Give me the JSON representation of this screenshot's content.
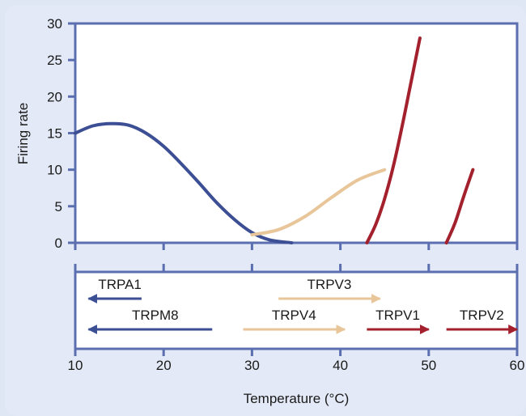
{
  "chart_data": {
    "type": "line",
    "xlabel": "Temperature (°C)",
    "ylabel": "Firing rate",
    "xlim": [
      10,
      60
    ],
    "ylim": [
      0,
      30
    ],
    "x_ticks": [
      10,
      20,
      30,
      40,
      50,
      60
    ],
    "y_ticks": [
      0,
      5,
      10,
      15,
      20,
      25,
      30
    ],
    "grid": false,
    "series": [
      {
        "name": "TRPM8",
        "color": "#3c4f94",
        "x": [
          10,
          12,
          14,
          16,
          18,
          20,
          22,
          24,
          26,
          28,
          30,
          32,
          34.5
        ],
        "y": [
          15,
          16,
          16.3,
          16.1,
          15,
          13.2,
          10.8,
          8.2,
          5.5,
          3.2,
          1.4,
          0.4,
          0
        ]
      },
      {
        "name": "TRPV4",
        "color": "#e8c69a",
        "x": [
          30,
          33,
          36,
          39,
          42,
          45
        ],
        "y": [
          1.1,
          1.8,
          3.6,
          6.2,
          8.6,
          10
        ]
      },
      {
        "name": "TRPV1",
        "color": "#a3202d",
        "x": [
          43,
          44,
          45,
          46,
          47,
          48,
          49
        ],
        "y": [
          0,
          2.5,
          6,
          10.5,
          16,
          22,
          28
        ]
      },
      {
        "name": "TRPV2",
        "color": "#a3202d",
        "x": [
          52,
          53,
          54,
          55
        ],
        "y": [
          0,
          2.8,
          6.5,
          10
        ]
      }
    ],
    "channel_ranges": [
      {
        "name": "TRPA1",
        "from": 17.5,
        "to": 11.5,
        "row": 1,
        "color": "#3c4f94"
      },
      {
        "name": "TRPV3",
        "from": 33,
        "to": 44.5,
        "row": 1,
        "color": "#e8c69a"
      },
      {
        "name": "TRPM8",
        "from": 25.5,
        "to": 11.5,
        "row": 2,
        "color": "#3c4f94"
      },
      {
        "name": "TRPV4",
        "from": 29,
        "to": 40.5,
        "row": 2,
        "color": "#e8c69a"
      },
      {
        "name": "TRPV1",
        "from": 43,
        "to": 50,
        "row": 2,
        "color": "#a3202d"
      },
      {
        "name": "TRPV2",
        "from": 52,
        "to": 60,
        "row": 2,
        "color": "#a3202d"
      }
    ]
  },
  "colors": {
    "background": "#dfe6f4",
    "panel_border": "#5b6fb0",
    "axis": "#5b6fb0"
  }
}
